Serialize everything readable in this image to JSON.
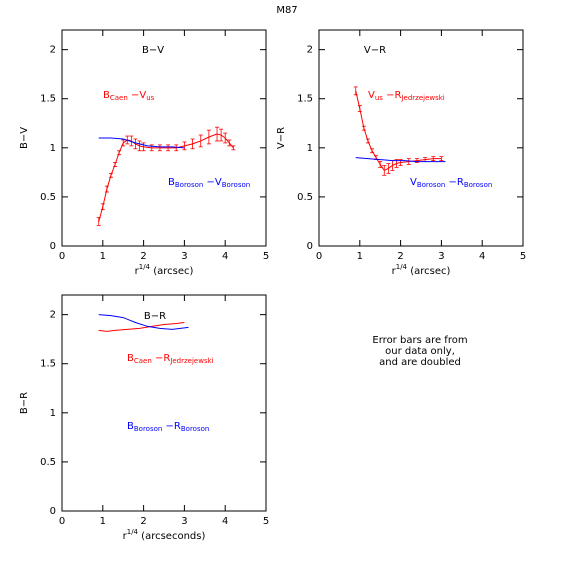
{
  "title": "M87",
  "note": [
    "Error bars are from",
    "our data only,",
    "and are doubled"
  ],
  "chart_data": [
    {
      "type": "line",
      "title": "B−V",
      "ylabel": "B−V",
      "xlabel": [
        "r",
        "1/4",
        " (arcsec)"
      ],
      "xlim": [
        0,
        5
      ],
      "xticks": [
        0,
        1,
        2,
        3,
        4,
        5
      ],
      "ylim": [
        0,
        2.2
      ],
      "yticks": [
        0,
        0.5,
        1,
        1.5,
        2
      ],
      "series": [
        {
          "name": [
            "B",
            "Caen",
            " −V",
            "us"
          ],
          "color": "#ff0000",
          "x": [
            0.9,
            1.0,
            1.1,
            1.2,
            1.3,
            1.4,
            1.5,
            1.6,
            1.7,
            1.8,
            1.9,
            2.0,
            2.2,
            2.4,
            2.6,
            2.8,
            3.0,
            3.2,
            3.4,
            3.6,
            3.8,
            3.9,
            4.0,
            4.1,
            4.2
          ],
          "values": [
            0.25,
            0.4,
            0.58,
            0.72,
            0.83,
            0.95,
            1.05,
            1.08,
            1.07,
            1.04,
            1.02,
            1.01,
            1.0,
            1.0,
            1.0,
            1.0,
            1.02,
            1.04,
            1.07,
            1.11,
            1.14,
            1.13,
            1.1,
            1.05,
            1.0
          ],
          "errors": [
            0.04,
            0.03,
            0.03,
            0.02,
            0.02,
            0.02,
            0.03,
            0.04,
            0.05,
            0.05,
            0.05,
            0.04,
            0.03,
            0.03,
            0.03,
            0.03,
            0.04,
            0.05,
            0.06,
            0.07,
            0.07,
            0.06,
            0.05,
            0.03,
            0.02
          ]
        },
        {
          "name": [
            "B",
            "Boroson",
            " −V",
            "Boroson"
          ],
          "color": "#0000ff",
          "x": [
            0.9,
            1.2,
            1.5,
            1.8,
            2.1,
            2.4,
            2.7,
            3.0
          ],
          "values": [
            1.1,
            1.1,
            1.09,
            1.05,
            1.02,
            1.01,
            1.01,
            1.0
          ]
        }
      ]
    },
    {
      "type": "line",
      "title": "V−R",
      "ylabel": "V−R",
      "xlabel": [
        "r",
        "1/4",
        " (arcsec)"
      ],
      "xlim": [
        0,
        5
      ],
      "xticks": [
        0,
        1,
        2,
        3,
        4,
        5
      ],
      "ylim": [
        0,
        2.2
      ],
      "yticks": [
        0,
        0.5,
        1,
        1.5,
        2
      ],
      "series": [
        {
          "name": [
            "V",
            "us",
            " −R",
            "Jedrzejewski"
          ],
          "color": "#ff0000",
          "x": [
            0.9,
            1.0,
            1.1,
            1.2,
            1.3,
            1.4,
            1.5,
            1.6,
            1.7,
            1.8,
            1.9,
            2.0,
            2.2,
            2.4,
            2.6,
            2.8,
            3.0
          ],
          "values": [
            1.58,
            1.4,
            1.2,
            1.07,
            0.97,
            0.9,
            0.83,
            0.77,
            0.79,
            0.82,
            0.84,
            0.85,
            0.86,
            0.87,
            0.88,
            0.89,
            0.89
          ],
          "errors": [
            0.04,
            0.03,
            0.02,
            0.02,
            0.02,
            0.02,
            0.03,
            0.05,
            0.05,
            0.05,
            0.04,
            0.03,
            0.03,
            0.02,
            0.02,
            0.02,
            0.02
          ]
        },
        {
          "name": [
            "V",
            "Boroson",
            " −R",
            "Boroson"
          ],
          "color": "#0000ff",
          "x": [
            0.9,
            1.2,
            1.5,
            1.8,
            2.1,
            2.4,
            2.7,
            3.1
          ],
          "values": [
            0.9,
            0.89,
            0.88,
            0.87,
            0.87,
            0.86,
            0.86,
            0.86
          ]
        }
      ]
    },
    {
      "type": "line",
      "title": "B−R",
      "ylabel": "B−R",
      "xlabel": [
        "r",
        "1/4",
        " (arcseconds)"
      ],
      "xlim": [
        0,
        5
      ],
      "xticks": [
        0,
        1,
        2,
        3,
        4,
        5
      ],
      "ylim": [
        0,
        2.2
      ],
      "yticks": [
        0,
        0.5,
        1,
        1.5,
        2
      ],
      "series": [
        {
          "name": [
            "B",
            "Caen",
            " −R",
            "Jedrzejewski"
          ],
          "color": "#ff0000",
          "x": [
            0.9,
            1.1,
            1.3,
            1.6,
            1.9,
            2.2,
            2.5,
            2.8,
            3.0
          ],
          "values": [
            1.84,
            1.83,
            1.84,
            1.85,
            1.86,
            1.88,
            1.9,
            1.91,
            1.92
          ]
        },
        {
          "name": [
            "B",
            "Boroson",
            " −R",
            "Boroson"
          ],
          "color": "#0000ff",
          "x": [
            0.9,
            1.2,
            1.5,
            1.8,
            2.1,
            2.4,
            2.7,
            3.1
          ],
          "values": [
            2.0,
            1.99,
            1.97,
            1.92,
            1.88,
            1.86,
            1.85,
            1.87
          ]
        }
      ]
    }
  ]
}
